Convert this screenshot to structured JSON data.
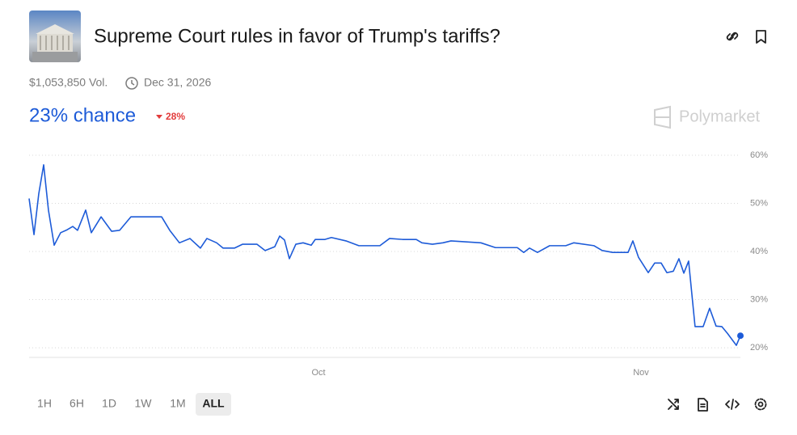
{
  "header": {
    "title": "Supreme Court rules in favor of Trump's tariffs?",
    "volume": "$1,053,850 Vol.",
    "end_date": "Dec 31, 2026",
    "chance": "23% chance",
    "change": "28%",
    "brand": "Polymarket"
  },
  "controls": {
    "ranges": [
      "1H",
      "6H",
      "1D",
      "1W",
      "1M",
      "ALL"
    ],
    "active": 5
  },
  "chart_data": {
    "type": "line",
    "x": [
      0,
      0.47,
      0.93,
      1.4,
      1.86,
      2.41,
      3.03,
      3.65,
      4.2,
      4.66,
      5.44,
      5.98,
      6.92,
      7.93,
      8.7,
      9.79,
      12.74,
      13.52,
      14.45,
      15.46,
      16.47,
      17.09,
      18.03,
      18.65,
      19.74,
      20.51,
      21.91,
      22.69,
      23.62,
      24.09,
      24.55,
      25.02,
      25.64,
      26.34,
      27.12,
      27.51,
      28.44,
      29.06,
      30.46,
      31.7,
      33.72,
      34.65,
      35.9,
      37.22,
      37.76,
      38.77,
      39.78,
      40.56,
      43.43,
      44.83,
      46.93,
      47.55,
      48.1,
      48.87,
      50.04,
      51.59,
      52.37,
      54.31,
      55.09,
      56.1,
      57.58,
      58.04,
      58.58,
      59.52,
      60.14,
      60.76,
      61.31,
      61.93,
      62.47,
      62.94,
      63.4,
      64.02,
      64.8,
      65.42,
      66.04,
      66.59,
      67.13,
      67.99,
      68.38
    ],
    "series": [
      {
        "color": "#1d5bd8",
        "values": [
          51,
          43.5,
          52,
          58,
          48.6,
          41.3,
          43.9,
          44.5,
          45.2,
          44.4,
          48.6,
          43.9,
          47.2,
          44.2,
          44.4,
          47.2,
          47.2,
          44.4,
          41.8,
          42.7,
          40.7,
          42.7,
          41.8,
          40.7,
          40.7,
          41.5,
          41.5,
          40.2,
          41.0,
          43.2,
          42.4,
          38.5,
          41.5,
          41.8,
          41.3,
          42.5,
          42.5,
          42.9,
          42.2,
          41.2,
          41.2,
          42.7,
          42.5,
          42.5,
          41.8,
          41.5,
          41.8,
          42.2,
          41.8,
          40.8,
          40.8,
          39.8,
          40.7,
          39.8,
          41.2,
          41.2,
          41.8,
          41.2,
          40.2,
          39.8,
          39.8,
          42.2,
          38.8,
          35.6,
          37.6,
          37.6,
          35.6,
          35.9,
          38.5,
          35.5,
          38.0,
          24.4,
          24.4,
          28.2,
          24.5,
          24.4,
          23.0,
          20.5,
          22.5
        ]
      }
    ],
    "xlim": [
      0,
      68.38
    ],
    "xticks": [
      {
        "value": 27.82,
        "label": "Oct"
      },
      {
        "value": 58.82,
        "label": "Nov"
      }
    ],
    "ylim": [
      18,
      61
    ],
    "yticks": [
      {
        "value": 20,
        "label": "20%"
      },
      {
        "value": 30,
        "label": "30%"
      },
      {
        "value": 40,
        "label": "40%"
      },
      {
        "value": 50,
        "label": "50%"
      },
      {
        "value": 60,
        "label": "60%"
      }
    ],
    "grid": true
  }
}
